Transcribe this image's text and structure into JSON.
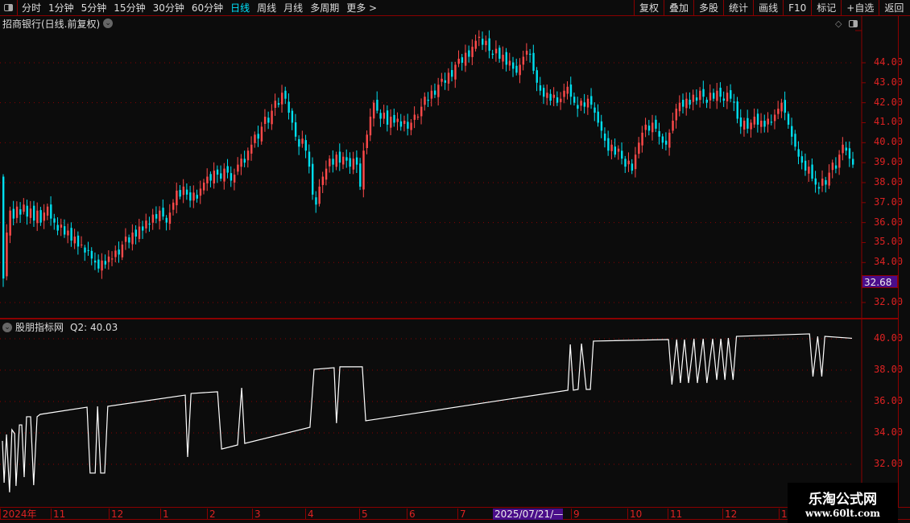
{
  "toolbar": {
    "periods": [
      "分时",
      "1分钟",
      "5分钟",
      "15分钟",
      "30分钟",
      "60分钟",
      "日线",
      "周线",
      "月线",
      "多周期",
      "更多 >"
    ],
    "active_period": "日线",
    "buttons": [
      "复权",
      "叠加",
      "多股",
      "统计",
      "画线",
      "F10",
      "标记",
      "+自选",
      "返回"
    ]
  },
  "main": {
    "title": "招商银行(日线.前复权)",
    "price_tag": "32.68",
    "axis_labels": [
      "44.00",
      "43.00",
      "42.00",
      "41.00",
      "40.00",
      "39.00",
      "38.00",
      "37.00",
      "36.00",
      "35.00",
      "34.00",
      "32.00"
    ]
  },
  "indicator": {
    "name": "股朋指标网",
    "value_label": "Q2: 40.03",
    "axis_labels": [
      "40.00",
      "38.00",
      "36.00",
      "34.00",
      "32.00"
    ]
  },
  "date_axis": [
    "2024年",
    "11",
    "12",
    "1",
    "2",
    "3",
    "4",
    "5",
    "6",
    "7",
    "2025/07/21/—",
    "9",
    "10",
    "11",
    "12",
    "1"
  ],
  "watermark": {
    "line1": "乐淘公式网",
    "line2": "www.60lt.com"
  },
  "colors": {
    "up": "#ff4a4a",
    "down": "#00e0f0",
    "axis": "#d22222",
    "grid": "#8b0000",
    "highlight": "#4a0d8a"
  },
  "chart_data": [
    {
      "type": "candlestick",
      "title": "招商银行(日线.前复权)",
      "ylim": [
        31.5,
        45.5
      ],
      "closes": [
        33.2,
        35.5,
        36.6,
        36.2,
        36.8,
        36.4,
        36.9,
        36.3,
        36.7,
        36.1,
        36.6,
        36.0,
        36.5,
        36.8,
        36.2,
        36.0,
        35.6,
        35.9,
        35.4,
        35.6,
        35.1,
        35.3,
        34.8,
        34.9,
        34.5,
        34.6,
        34.2,
        34.0,
        33.7,
        34.1,
        33.9,
        34.3,
        34.2,
        34.6,
        34.4,
        34.9,
        35.3,
        35.0,
        35.5,
        35.3,
        35.8,
        35.6,
        36.1,
        35.9,
        36.4,
        36.2,
        36.6,
        36.3,
        36.0,
        36.5,
        37.0,
        37.6,
        37.3,
        37.8,
        37.4,
        37.1,
        37.5,
        37.2,
        37.7,
        38.0,
        38.3,
        38.1,
        38.6,
        38.4,
        38.2,
        38.7,
        38.5,
        38.1,
        38.4,
        38.9,
        39.2,
        39.0,
        39.6,
        39.9,
        40.4,
        40.2,
        40.8,
        41.3,
        41.0,
        41.6,
        42.1,
        41.9,
        42.5,
        42.2,
        41.5,
        41.0,
        40.3,
        39.8,
        40.2,
        39.6,
        38.8,
        37.4,
        36.9,
        37.8,
        38.3,
        38.7,
        39.2,
        38.9,
        39.4,
        39.0,
        39.3,
        39.1,
        38.8,
        39.2,
        38.9,
        37.8,
        39.6,
        40.4,
        41.3,
        42.0,
        41.6,
        41.2,
        41.5,
        40.9,
        41.3,
        41.0,
        41.2,
        40.8,
        41.1,
        40.7,
        41.0,
        41.4,
        41.3,
        41.8,
        42.3,
        42.1,
        42.6,
        42.4,
        42.9,
        43.2,
        43.0,
        43.5,
        43.3,
        43.9,
        44.2,
        44.0,
        44.5,
        44.3,
        44.8,
        45.1,
        45.3,
        44.9,
        45.1,
        44.6,
        44.4,
        44.7,
        44.2,
        44.4,
        43.9,
        44.1,
        43.7,
        43.5,
        43.9,
        44.3,
        44.6,
        44.4,
        43.6,
        43.0,
        42.6,
        42.3,
        42.5,
        42.1,
        42.4,
        42.0,
        42.2,
        42.6,
        42.8,
        42.3,
        42.0,
        41.7,
        42.1,
        41.8,
        42.2,
        41.9,
        41.5,
        41.0,
        40.6,
        40.1,
        39.6,
        39.9,
        39.4,
        39.7,
        39.2,
        38.8,
        39.1,
        38.6,
        39.4,
        40.0,
        40.5,
        40.9,
        40.6,
        41.0,
        40.7,
        40.3,
        40.0,
        39.9,
        40.5,
        41.1,
        41.7,
        42.0,
        41.8,
        42.2,
        41.9,
        42.4,
        42.1,
        42.6,
        42.3,
        42.0,
        42.5,
        42.2,
        42.6,
        42.3,
        42.1,
        42.5,
        42.2,
        42.0,
        41.2,
        40.8,
        41.1,
        40.7,
        41.0,
        41.3,
        40.9,
        41.1,
        40.8,
        41.2,
        41.0,
        41.4,
        41.7,
        42.0,
        41.5,
        40.9,
        40.3,
        39.8,
        39.3,
        39.0,
        38.6,
        38.8,
        38.2,
        37.9,
        37.7,
        38.2,
        37.9,
        38.5,
        39.0,
        38.7,
        39.4,
        39.9,
        39.6,
        39.2,
        38.9
      ]
    },
    {
      "type": "line",
      "name": "Q2",
      "ylim": [
        31,
        40.5
      ],
      "points": [
        [
          0,
          33.49
        ],
        [
          0.5,
          30.82
        ],
        [
          1.2,
          33.9
        ],
        [
          2.1,
          30.21
        ],
        [
          2.8,
          34.2
        ],
        [
          3.6,
          33.95
        ],
        [
          4.0,
          30.62
        ],
        [
          5.0,
          34.51
        ],
        [
          5.7,
          34.51
        ],
        [
          6.4,
          31.18
        ],
        [
          7.1,
          35.03
        ],
        [
          8.3,
          35.03
        ],
        [
          9.2,
          30.67
        ],
        [
          10.2,
          35.03
        ],
        [
          11.1,
          35.18
        ],
        [
          24.9,
          35.64
        ],
        [
          25.8,
          31.44
        ],
        [
          27.3,
          31.44
        ],
        [
          28.0,
          35.69
        ],
        [
          28.9,
          31.44
        ],
        [
          30.1,
          31.44
        ],
        [
          31.0,
          35.69
        ],
        [
          53.8,
          36.41
        ],
        [
          54.5,
          32.46
        ],
        [
          55.5,
          36.51
        ],
        [
          63.3,
          36.62
        ],
        [
          64.5,
          32.97
        ],
        [
          69.2,
          33.23
        ],
        [
          70.4,
          36.87
        ],
        [
          71.3,
          33.33
        ],
        [
          90.5,
          34.36
        ],
        [
          91.7,
          38.05
        ],
        [
          97.6,
          38.15
        ],
        [
          98.3,
          34.62
        ],
        [
          99.3,
          38.21
        ],
        [
          105.9,
          38.21
        ],
        [
          106.9,
          34.77
        ],
        [
          166.4,
          36.72
        ],
        [
          167.1,
          39.64
        ],
        [
          168.0,
          36.72
        ],
        [
          169.4,
          36.77
        ],
        [
          170.4,
          39.69
        ],
        [
          171.8,
          36.77
        ],
        [
          173.0,
          36.77
        ],
        [
          173.9,
          39.85
        ],
        [
          196.0,
          39.95
        ],
        [
          197.0,
          37.08
        ],
        [
          198.4,
          39.95
        ],
        [
          199.5,
          37.18
        ],
        [
          200.7,
          39.95
        ],
        [
          201.9,
          37.18
        ],
        [
          203.5,
          40.0
        ],
        [
          204.5,
          37.18
        ],
        [
          206.2,
          40.0
        ],
        [
          207.3,
          37.18
        ],
        [
          209.0,
          40.0
        ],
        [
          210.2,
          37.38
        ],
        [
          211.4,
          40.0
        ],
        [
          212.6,
          37.38
        ],
        [
          213.6,
          40.05
        ],
        [
          215.0,
          37.38
        ],
        [
          216.0,
          40.15
        ],
        [
          237.5,
          40.31
        ],
        [
          238.5,
          37.59
        ],
        [
          239.9,
          40.15
        ],
        [
          241.1,
          37.59
        ],
        [
          242.0,
          40.15
        ],
        [
          250,
          40.03
        ]
      ]
    }
  ]
}
